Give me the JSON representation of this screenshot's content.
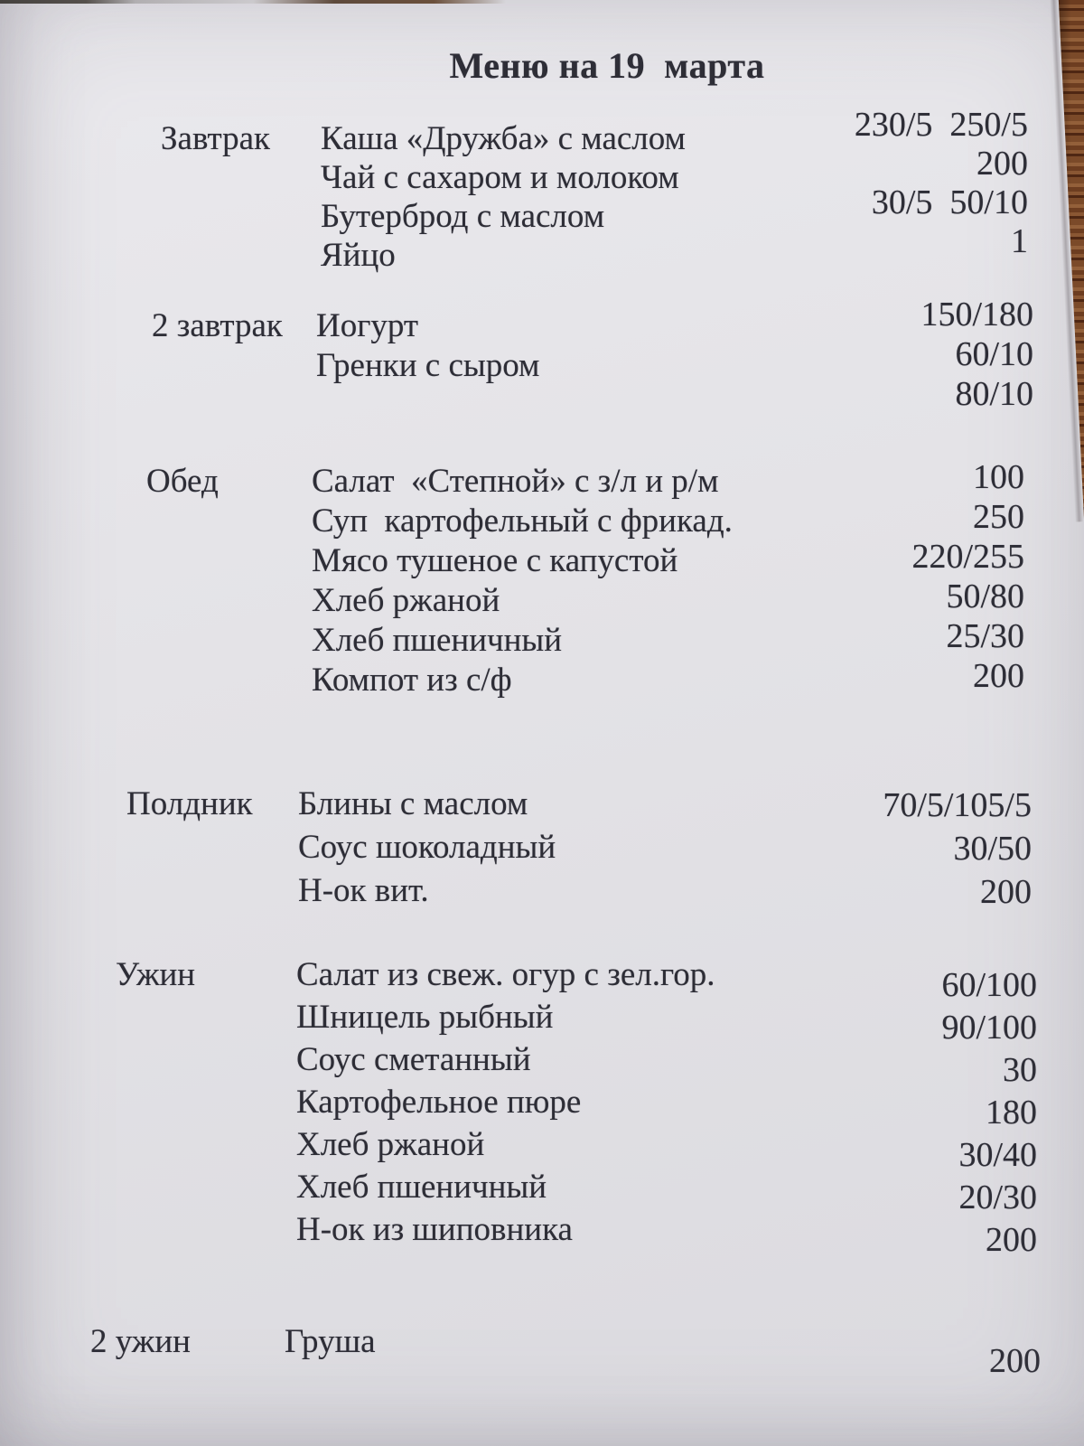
{
  "page": {
    "title": "Меню на 19  марта"
  },
  "colors": {
    "paper": "#e3e2e6",
    "ink": "#2d2d36",
    "wood_table": "#7b4a29"
  },
  "menu": {
    "sections": [
      {
        "label": "Завтрак",
        "items": [
          {
            "name": "Каша «Дружба» с маслом",
            "portion": "230/5  250/5"
          },
          {
            "name": "Чай с сахаром и молоком",
            "portion": "200"
          },
          {
            "name": "Бутерброд с маслом",
            "portion": "30/5  50/10"
          },
          {
            "name": "Яйцо",
            "portion": "1"
          }
        ]
      },
      {
        "label": "2 завтрак",
        "items": [
          {
            "name": "Иогурт",
            "portion": "150/180"
          },
          {
            "name": "Гренки с сыром",
            "portion": "60/10"
          },
          {
            "name": "",
            "portion": "80/10"
          }
        ]
      },
      {
        "label": "Обед",
        "items": [
          {
            "name": "Салат  «Степной» с з/л и р/м",
            "portion": "100"
          },
          {
            "name": "Суп  картофельный с фрикад.",
            "portion": "250"
          },
          {
            "name": "Мясо тушеное с капустой",
            "portion": "220/255"
          },
          {
            "name": "Хлеб ржаной",
            "portion": "50/80"
          },
          {
            "name": "Хлеб пшеничный",
            "portion": "25/30"
          },
          {
            "name": "Компот из с/ф",
            "portion": "200"
          }
        ]
      },
      {
        "label": "Полдник",
        "items": [
          {
            "name": "Блины с маслом",
            "portion": "70/5/105/5"
          },
          {
            "name": "Соус шоколадный",
            "portion": "30/50"
          },
          {
            "name": "Н-ок вит.",
            "portion": "200"
          }
        ]
      },
      {
        "label": "Ужин",
        "items": [
          {
            "name": "Салат из свеж. огур с зел.гор.",
            "portion": "60/100"
          },
          {
            "name": "Шницель рыбный",
            "portion": "90/100"
          },
          {
            "name": "Соус сметанный",
            "portion": "30"
          },
          {
            "name": "Картофельное пюре",
            "portion": "180"
          },
          {
            "name": "Хлеб ржаной",
            "portion": "30/40"
          },
          {
            "name": "Хлеб пшеничный",
            "portion": "20/30"
          },
          {
            "name": "Н-ок из шиповника",
            "portion": "200"
          }
        ]
      },
      {
        "label": "2 ужин",
        "items": [
          {
            "name": "Груша",
            "portion": "200"
          }
        ]
      }
    ]
  }
}
